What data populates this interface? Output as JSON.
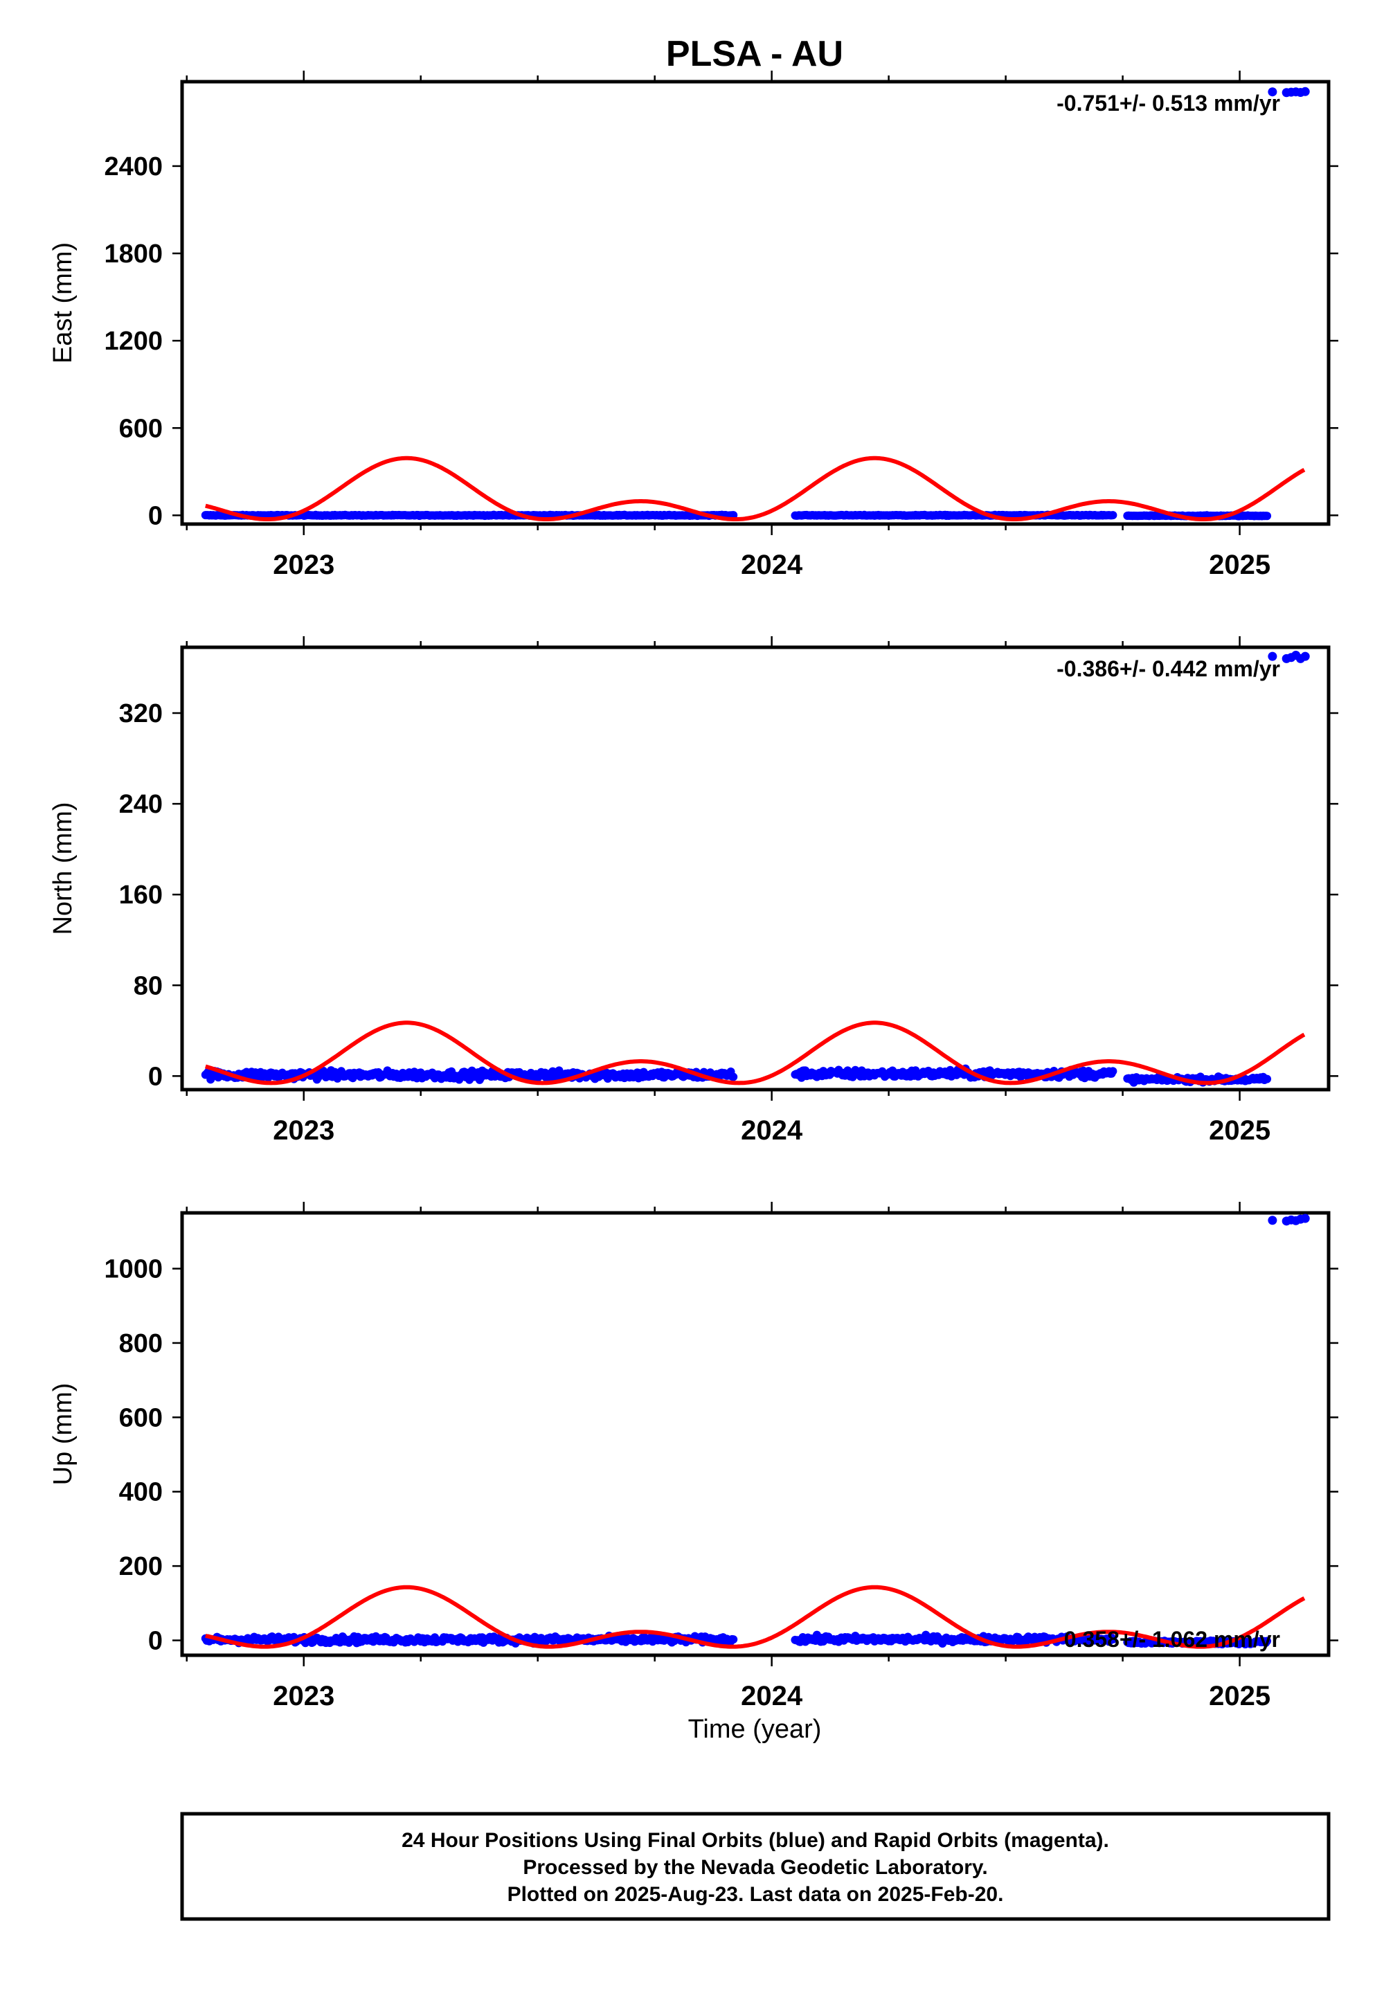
{
  "title": "PLSA - AU",
  "xlabel": "Time (year)",
  "footer": {
    "line1": "24 Hour Positions Using Final Orbits (blue) and Rapid Orbits (magenta).",
    "line2": "Processed by the Nevada Geodetic Laboratory.",
    "line3": "Plotted on 2025-Aug-23. Last data on 2025-Feb-20."
  },
  "colors": {
    "data": "#0000ff",
    "model": "#ff0000",
    "frame": "#000000"
  },
  "chart_data": [
    {
      "type": "scatter",
      "component": "east",
      "ylabel": "East (mm)",
      "rate_label": "-0.751+/- 0.513 mm/yr",
      "rate_position": "top-right",
      "xlim": [
        2022.74,
        2025.19
      ],
      "ylim": [
        -60,
        2980
      ],
      "x_ticks": [
        2023,
        2024,
        2025
      ],
      "y_ticks": [
        0,
        600,
        1200,
        1800,
        2400
      ],
      "segments": [
        {
          "x_start": 2022.79,
          "x_end": 2023.92,
          "level": 0,
          "noise": 2
        },
        {
          "x_start": 2024.05,
          "x_end": 2024.73,
          "level": 0,
          "noise": 2
        },
        {
          "x_start": 2024.76,
          "x_end": 2025.06,
          "level": -3,
          "noise": 2
        }
      ],
      "outliers": {
        "x": [
          2025.07,
          2025.1,
          2025.11,
          2025.12,
          2025.13,
          2025.14
        ],
        "y": [
          2910,
          2905,
          2908,
          2910,
          2906,
          2912
        ]
      },
      "model": {
        "amp_annual": 148,
        "amp_semi": 125,
        "phase_annual": 0.22,
        "phase_semi": 0.22,
        "offset": 120
      }
    },
    {
      "type": "scatter",
      "component": "north",
      "ylabel": "North (mm)",
      "rate_label": "-0.386+/- 0.442 mm/yr",
      "rate_position": "top-right",
      "xlim": [
        2022.74,
        2025.19
      ],
      "ylim": [
        -12,
        378
      ],
      "x_ticks": [
        2023,
        2024,
        2025
      ],
      "y_ticks": [
        0,
        80,
        160,
        240,
        320
      ],
      "segments": [
        {
          "x_start": 2022.79,
          "x_end": 2023.92,
          "level": 1,
          "noise": 2.5
        },
        {
          "x_start": 2024.05,
          "x_end": 2024.73,
          "level": 2,
          "noise": 2.5
        },
        {
          "x_start": 2024.76,
          "x_end": 2025.06,
          "level": -3,
          "noise": 1.5
        }
      ],
      "outliers": {
        "x": [
          2025.07,
          2025.1,
          2025.11,
          2025.12,
          2025.13,
          2025.14
        ],
        "y": [
          370,
          368,
          369,
          371,
          368,
          370
        ]
      },
      "model": {
        "amp_annual": 17,
        "amp_semi": 17,
        "phase_annual": 0.22,
        "phase_semi": 0.22,
        "offset": 13
      }
    },
    {
      "type": "scatter",
      "component": "up",
      "ylabel": "Up (mm)",
      "rate_label": "0.358+/- 1.062 mm/yr",
      "rate_position": "bottom-right",
      "xlim": [
        2022.74,
        2025.19
      ],
      "ylim": [
        -40,
        1150
      ],
      "x_ticks": [
        2023,
        2024,
        2025
      ],
      "y_ticks": [
        0,
        200,
        400,
        600,
        800,
        1000
      ],
      "segments": [
        {
          "x_start": 2022.79,
          "x_end": 2023.92,
          "level": 2,
          "noise": 6
        },
        {
          "x_start": 2024.05,
          "x_end": 2024.73,
          "level": 3,
          "noise": 6
        },
        {
          "x_start": 2024.76,
          "x_end": 2025.06,
          "level": -5,
          "noise": 4
        }
      ],
      "outliers": {
        "x": [
          2025.07,
          2025.1,
          2025.11,
          2025.12,
          2025.13,
          2025.14
        ],
        "y": [
          1130,
          1128,
          1131,
          1129,
          1133,
          1135
        ]
      },
      "model": {
        "amp_annual": 60,
        "amp_semi": 45,
        "phase_annual": 0.22,
        "phase_semi": 0.22,
        "offset": 38
      }
    }
  ]
}
